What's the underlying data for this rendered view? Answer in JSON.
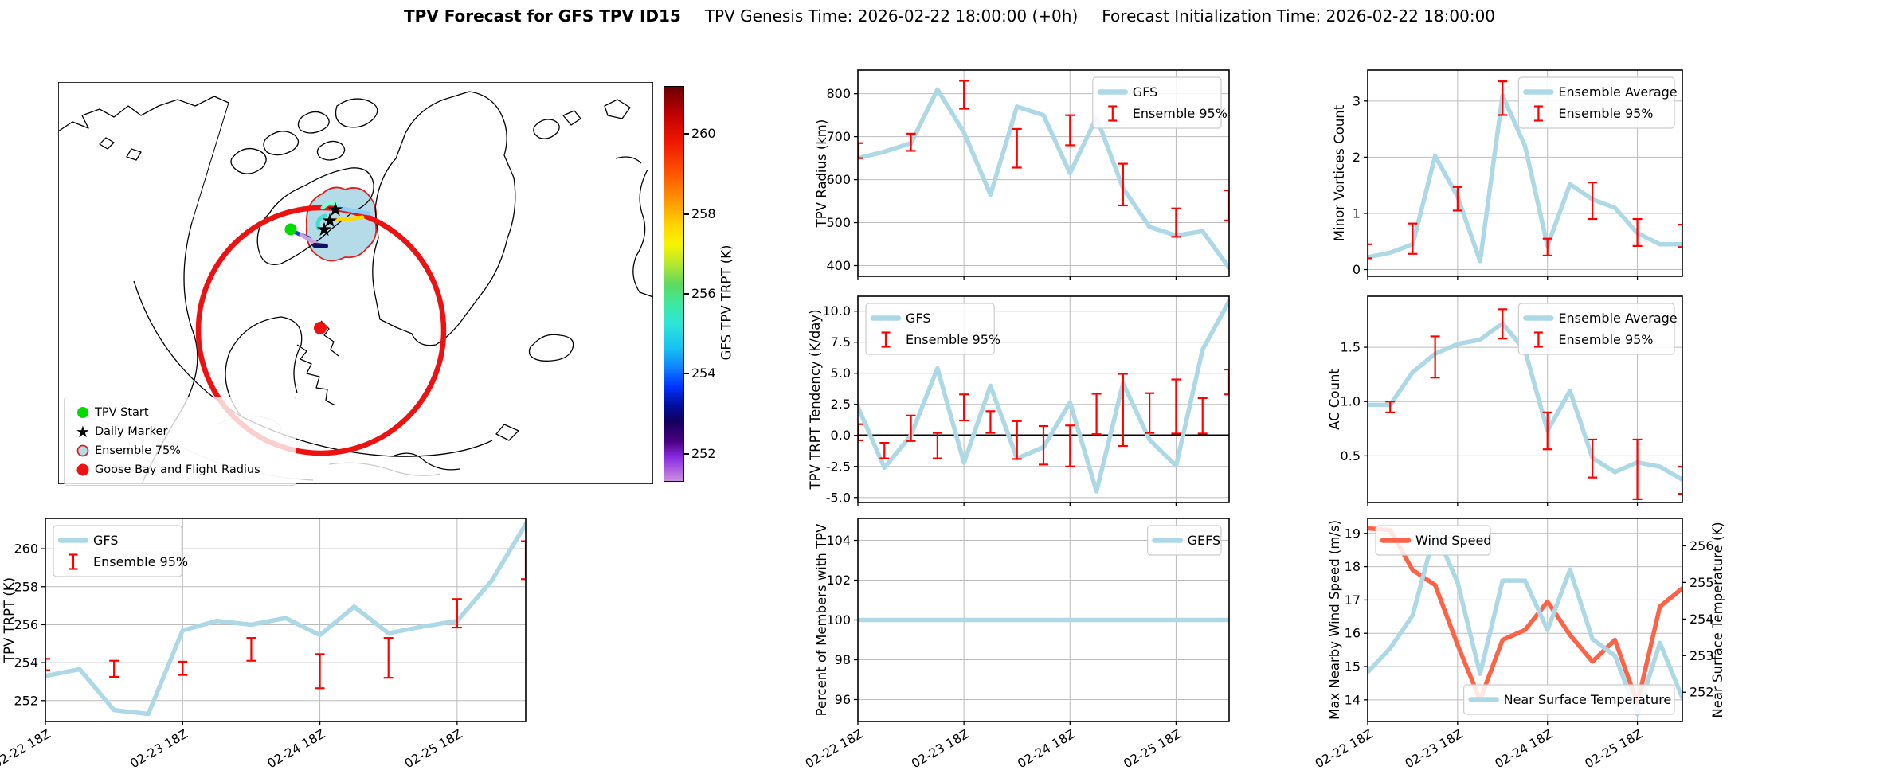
{
  "title": {
    "main": "TPV Forecast for GFS TPV ID15",
    "genesis": "TPV Genesis Time: 2026-02-22 18:00:00 (+0h)",
    "init": "Forecast Initialization Time: 2026-02-22 18:00:00"
  },
  "colors": {
    "ensemble_line": "#add8e6",
    "error_bar": "#ff0000",
    "wind": "#ff6347",
    "temp_axis": "#4169e1",
    "grid": "#bcbcbc",
    "flight_circle": "#ee1111",
    "blob_fill": "#b5dbe8",
    "blob_edge": "#dd2222",
    "tpv_start": "#00dc00",
    "daily_marker": "#ff00ff"
  },
  "map": {
    "legend_items": [
      {
        "marker": "tpv-start-dot",
        "label": "TPV Start"
      },
      {
        "marker": "daily-marker-star",
        "label": "Daily Marker"
      },
      {
        "marker": "ensemble-75-circle",
        "label": "Ensemble 75%"
      },
      {
        "marker": "goose-bay-dot",
        "label": "Goose Bay and Flight Radius"
      }
    ],
    "colorbar": {
      "label": "GFS TPV TRPT (K)",
      "ticks": [
        260,
        258,
        256,
        254,
        252
      ],
      "vmin": 251.3,
      "vmax": 261.2
    }
  },
  "time_axis": {
    "tick_labels": [
      "02-22 18Z",
      "02-23 18Z",
      "02-24 18Z",
      "02-25 18Z"
    ],
    "tick_indices": [
      0,
      4,
      8,
      12
    ],
    "n_points": 15
  },
  "chart_data": [
    {
      "id": "tpv-trpt",
      "type": "line",
      "ylabel": "TPV TRPT (K)",
      "ylim": [
        250.9,
        261.6
      ],
      "yticks": [
        252,
        254,
        256,
        258,
        260
      ],
      "ytick_format": "int",
      "grid": true,
      "x_tick_labels": true,
      "legends": [
        {
          "position": "upper-left",
          "entries": [
            {
              "type": "line",
              "label": "GFS"
            },
            {
              "type": "errorbar",
              "label": "Ensemble 95%"
            }
          ]
        }
      ],
      "series": [
        {
          "name": "GFS",
          "axis": "left",
          "values": [
            253.3,
            253.65,
            251.5,
            251.3,
            255.7,
            256.2,
            256.0,
            256.35,
            255.45,
            256.95,
            255.55,
            255.9,
            256.2,
            258.3,
            261.3
          ]
        }
      ],
      "error_bars": {
        "indices": [
          0,
          2,
          4,
          6,
          8,
          10,
          12,
          14
        ],
        "ranges": [
          [
            253.6,
            254.2
          ],
          [
            253.25,
            254.1
          ],
          [
            253.35,
            254.05
          ],
          [
            254.1,
            255.3
          ],
          [
            252.65,
            254.45
          ],
          [
            253.2,
            255.3
          ],
          [
            255.85,
            257.35
          ],
          [
            258.4,
            260.4
          ]
        ]
      }
    },
    {
      "id": "tpv-radius",
      "type": "line",
      "ylabel": "TPV Radius (km)",
      "ylim": [
        375,
        855
      ],
      "yticks": [
        400,
        500,
        600,
        700,
        800
      ],
      "ytick_format": "int",
      "grid": true,
      "x_tick_labels": false,
      "legends": [
        {
          "position": "upper-right",
          "entries": [
            {
              "type": "line",
              "label": "GFS"
            },
            {
              "type": "errorbar",
              "label": "Ensemble 95%"
            }
          ]
        }
      ],
      "series": [
        {
          "name": "GFS",
          "axis": "left",
          "values": [
            650,
            665,
            685,
            810,
            710,
            565,
            770,
            750,
            615,
            745,
            580,
            490,
            470,
            480,
            395
          ]
        }
      ],
      "error_bars": {
        "indices": [
          0,
          2,
          4,
          6,
          8,
          10,
          12,
          14
        ],
        "ranges": [
          [
            650,
            685
          ],
          [
            667,
            707
          ],
          [
            765,
            830
          ],
          [
            628,
            718
          ],
          [
            680,
            750
          ],
          [
            540,
            637
          ],
          [
            467,
            533
          ],
          [
            505,
            575
          ]
        ]
      }
    },
    {
      "id": "trpt-tendency",
      "type": "line",
      "ylabel": "TPV TRPT Tendency (K/day)",
      "ylim": [
        -5.4,
        11.2
      ],
      "yticks": [
        -5.0,
        -2.5,
        0.0,
        2.5,
        5.0,
        7.5,
        10.0
      ],
      "ytick_format": "dec1",
      "grid": true,
      "x_tick_labels": false,
      "zero_line": true,
      "legends": [
        {
          "position": "upper-left",
          "entries": [
            {
              "type": "line",
              "label": "GFS"
            },
            {
              "type": "errorbar",
              "label": "Ensemble 95%"
            }
          ]
        }
      ],
      "series": [
        {
          "name": "GFS",
          "axis": "left",
          "values": [
            2.3,
            -2.6,
            0.0,
            5.4,
            -2.2,
            4.0,
            -1.85,
            -0.95,
            2.65,
            -4.5,
            4.2,
            -0.35,
            -2.45,
            6.9,
            10.8
          ]
        }
      ],
      "error_bars": {
        "indices": [
          0,
          1,
          2,
          3,
          4,
          5,
          6,
          7,
          8,
          9,
          10,
          11,
          12,
          13,
          14
        ],
        "ranges": [
          [
            -0.4,
            0.9
          ],
          [
            -1.85,
            -0.6
          ],
          [
            -0.45,
            1.6
          ],
          [
            -1.85,
            0.2
          ],
          [
            1.2,
            3.3
          ],
          [
            0.2,
            1.95
          ],
          [
            -1.9,
            1.15
          ],
          [
            -2.35,
            0.75
          ],
          [
            -2.5,
            0.8
          ],
          [
            0.1,
            3.35
          ],
          [
            -0.85,
            4.95
          ],
          [
            0.2,
            3.4
          ],
          [
            0.15,
            4.5
          ],
          [
            0.15,
            3.0
          ],
          [
            3.3,
            5.3
          ]
        ]
      }
    },
    {
      "id": "percent-members",
      "type": "line",
      "ylabel": "Percent of Members with TPV",
      "ylim": [
        94.9,
        105.1
      ],
      "yticks": [
        96,
        98,
        100,
        102,
        104
      ],
      "ytick_format": "int",
      "grid": true,
      "x_tick_labels": true,
      "legends": [
        {
          "position": "upper-right",
          "entries": [
            {
              "type": "line",
              "label": "GEFS"
            }
          ]
        }
      ],
      "series": [
        {
          "name": "GEFS",
          "axis": "left",
          "values": [
            100,
            100,
            100,
            100,
            100,
            100,
            100,
            100,
            100,
            100,
            100,
            100,
            100,
            100,
            100
          ]
        }
      ]
    },
    {
      "id": "minor-vortices",
      "type": "line",
      "ylabel": "Minor Vortices Count",
      "ylim": [
        -0.12,
        3.55
      ],
      "yticks": [
        0,
        1,
        2,
        3
      ],
      "ytick_format": "int",
      "grid": true,
      "x_tick_labels": false,
      "legends": [
        {
          "position": "upper-right",
          "entries": [
            {
              "type": "line",
              "label": "Ensemble Average"
            },
            {
              "type": "errorbar",
              "label": "Ensemble 95%"
            }
          ]
        }
      ],
      "series": [
        {
          "name": "Ensemble Average",
          "axis": "left",
          "values": [
            0.22,
            0.3,
            0.45,
            2.02,
            1.3,
            0.15,
            3.1,
            2.2,
            0.42,
            1.52,
            1.25,
            1.1,
            0.65,
            0.45,
            0.45
          ]
        }
      ],
      "error_bars": {
        "indices": [
          0,
          2,
          4,
          6,
          8,
          10,
          12,
          14
        ],
        "ranges": [
          [
            0.2,
            0.45
          ],
          [
            0.28,
            0.82
          ],
          [
            1.05,
            1.47
          ],
          [
            2.75,
            3.35
          ],
          [
            0.25,
            0.55
          ],
          [
            0.9,
            1.55
          ],
          [
            0.42,
            0.9
          ],
          [
            0.4,
            0.8
          ]
        ]
      }
    },
    {
      "id": "ac-count",
      "type": "line",
      "ylabel": "AC Count",
      "ylim": [
        0.07,
        1.97
      ],
      "yticks": [
        0.5,
        1.0,
        1.5
      ],
      "ytick_format": "dec1",
      "grid": true,
      "x_tick_labels": false,
      "legends": [
        {
          "position": "upper-right",
          "entries": [
            {
              "type": "line",
              "label": "Ensemble Average"
            },
            {
              "type": "errorbar",
              "label": "Ensemble 95%"
            }
          ]
        }
      ],
      "series": [
        {
          "name": "Ensemble Average",
          "axis": "left",
          "values": [
            0.97,
            0.97,
            1.27,
            1.44,
            1.53,
            1.57,
            1.72,
            1.47,
            0.73,
            1.1,
            0.48,
            0.35,
            0.44,
            0.4,
            0.28
          ]
        }
      ],
      "error_bars": {
        "indices": [
          1,
          3,
          6,
          8,
          10,
          12,
          14
        ],
        "ranges": [
          [
            0.9,
            1.0
          ],
          [
            1.22,
            1.6
          ],
          [
            1.58,
            1.85
          ],
          [
            0.56,
            0.9
          ],
          [
            0.3,
            0.65
          ],
          [
            0.1,
            0.65
          ],
          [
            0.15,
            0.4
          ]
        ]
      }
    },
    {
      "id": "wind-temp",
      "type": "line",
      "left_axis": {
        "ylabel": "Max Nearby Wind Speed (m/s)",
        "color": "#ff6347",
        "ylim": [
          13.35,
          19.45
        ],
        "yticks": [
          14,
          15,
          16,
          17,
          18,
          19
        ],
        "ytick_format": "int"
      },
      "right_axis": {
        "ylabel": "Near Surface Temperature (K)",
        "color": "#4169e1",
        "ylim": [
          251.2,
          256.75
        ],
        "yticks": [
          252,
          253,
          254,
          255,
          256
        ],
        "ytick_format": "int"
      },
      "grid": true,
      "x_tick_labels": true,
      "legends": [
        {
          "position": "upper-left",
          "entries": [
            {
              "type": "line",
              "color": "#ff6347",
              "label": "Wind Speed"
            }
          ]
        },
        {
          "position": "lower-right",
          "entries": [
            {
              "type": "line",
              "color": "#add8e6",
              "label": "Near Surface Temperature"
            }
          ]
        }
      ],
      "series": [
        {
          "name": "Wind Speed",
          "axis": "left",
          "color": "#ff6347",
          "values": [
            19.15,
            19.1,
            17.9,
            17.45,
            15.65,
            14.0,
            15.8,
            16.1,
            16.95,
            15.95,
            15.15,
            15.8,
            13.9,
            16.8,
            17.35
          ]
        },
        {
          "name": "Near Surface Temperature",
          "axis": "right",
          "color": "#add8e6",
          "values": [
            252.55,
            253.2,
            254.1,
            256.4,
            255.0,
            252.5,
            255.05,
            255.05,
            253.7,
            255.35,
            253.45,
            253.0,
            251.4,
            253.35,
            251.85
          ]
        }
      ]
    }
  ]
}
